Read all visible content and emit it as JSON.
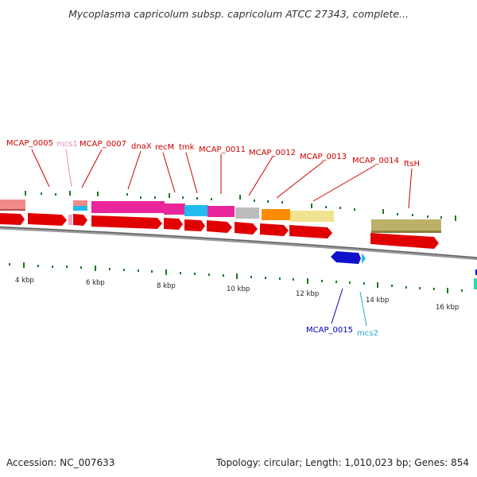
{
  "title": "Mycoplasma capricolum subsp. capricolum ATCC 27343, complete...",
  "footer": {
    "accession": "Accession: NC_007633",
    "summary": "Topology: circular; Length: 1,010,023 bp; Genes: 854"
  },
  "colors": {
    "backbone": "#888888",
    "tick": "#1a7a1a",
    "cds_forward": "#e00000",
    "cds_reverse": "#1010cc",
    "label_red": "#cc0000",
    "label_pink": "#e888bb",
    "label_blue": "#0000bb",
    "label_cyan": "#22aacc"
  },
  "axis_labels": [
    {
      "id": "4kbp",
      "text": "4 kbp"
    },
    {
      "id": "6kbp",
      "text": "6 kbp"
    },
    {
      "id": "8kbp",
      "text": "8 kbp"
    },
    {
      "id": "10kbp",
      "text": "10 kbp"
    },
    {
      "id": "12kbp",
      "text": "12 kbp"
    },
    {
      "id": "14kbp",
      "text": "14 kbp"
    },
    {
      "id": "16kbp",
      "text": "16 kbp"
    }
  ],
  "gene_labels": [
    {
      "id": "mcap0005",
      "text": "MCAP_0005"
    },
    {
      "id": "mcs1",
      "text": "mcs1"
    },
    {
      "id": "mcap0007",
      "text": "MCAP_0007"
    },
    {
      "id": "dnax",
      "text": "dnaX"
    },
    {
      "id": "recm",
      "text": "recM"
    },
    {
      "id": "tmk",
      "text": "tmk"
    },
    {
      "id": "mcap0011",
      "text": "MCAP_0011"
    },
    {
      "id": "mcap0012",
      "text": "MCAP_0012"
    },
    {
      "id": "mcap0013",
      "text": "MCAP_0013"
    },
    {
      "id": "mcap0014",
      "text": "MCAP_0014"
    },
    {
      "id": "ftsh",
      "text": "ftsH"
    },
    {
      "id": "mcap0015",
      "text": "MCAP_0015"
    },
    {
      "id": "mcs2",
      "text": "mcs2"
    }
  ]
}
